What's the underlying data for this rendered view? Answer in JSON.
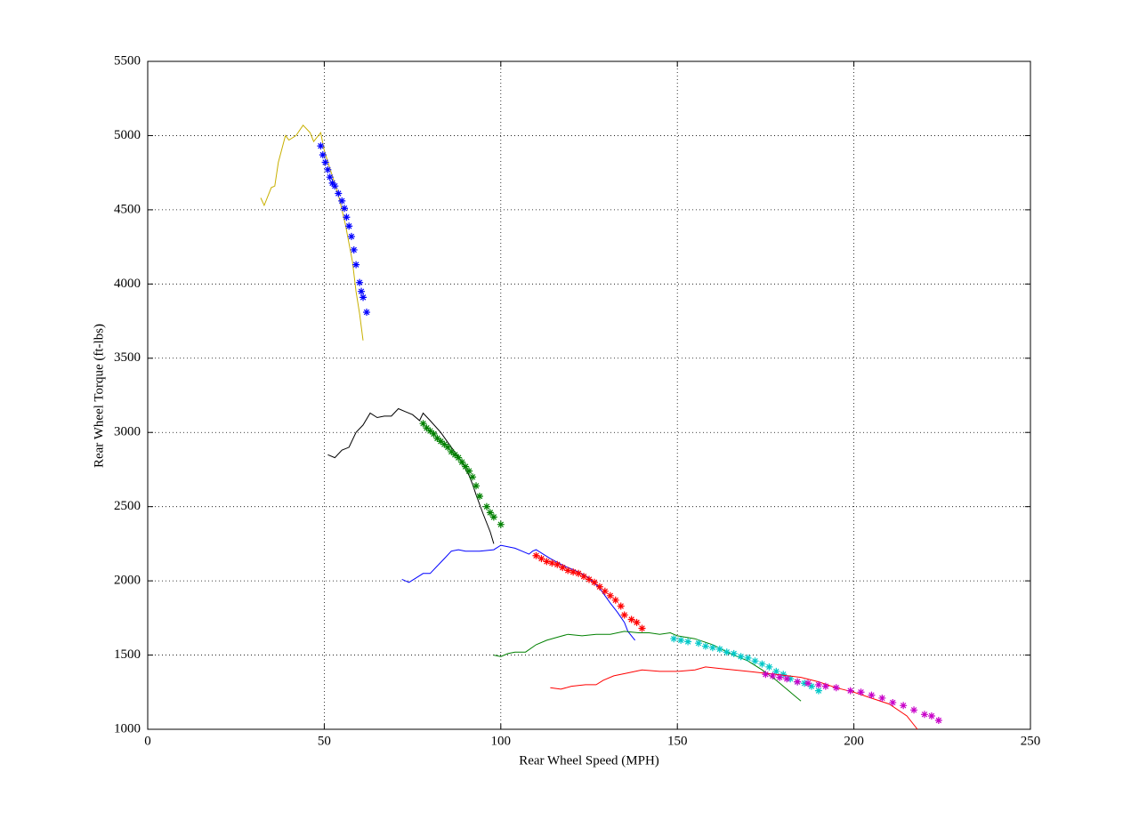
{
  "chart_data": {
    "type": "line",
    "xlabel": "Rear Wheel Speed (MPH)",
    "ylabel": "Rear Wheel Torque (ft-lbs)",
    "xlim": [
      0,
      250
    ],
    "xticks": [
      0,
      50,
      100,
      150,
      200,
      250
    ],
    "ylim": [
      1000,
      5500
    ],
    "yticks": [
      1000,
      1500,
      2000,
      2500,
      3000,
      3500,
      4000,
      4500,
      5000,
      5500
    ],
    "grid": true,
    "series": [
      {
        "color": "#c8b000",
        "style": "line",
        "x": [
          32,
          33,
          35,
          36,
          37,
          39,
          40,
          42,
          44,
          46,
          47,
          49,
          50,
          52,
          54,
          56,
          58,
          59,
          60,
          61
        ],
        "values": [
          4580,
          4530,
          4650,
          4660,
          4820,
          5000,
          4970,
          5000,
          5070,
          5020,
          4960,
          5020,
          4900,
          4750,
          4600,
          4400,
          4150,
          3950,
          3800,
          3620
        ]
      },
      {
        "color": "#0000ff",
        "style": "star",
        "x": [
          49,
          49.6,
          50.3,
          51,
          51.6,
          52.3,
          53,
          54,
          55,
          55.7,
          56.3,
          57,
          57.7,
          58.4,
          59,
          60,
          60.5,
          61,
          62
        ],
        "values": [
          4930,
          4870,
          4820,
          4770,
          4720,
          4680,
          4660,
          4610,
          4560,
          4510,
          4450,
          4390,
          4320,
          4230,
          4130,
          4010,
          3950,
          3910,
          3810
        ]
      },
      {
        "color": "#000000",
        "style": "line",
        "x": [
          51,
          53,
          55,
          57,
          59,
          61,
          63,
          65,
          67,
          69,
          71,
          73,
          75,
          77,
          78,
          80,
          83,
          86,
          89,
          91,
          92,
          93,
          95,
          97,
          98
        ],
        "values": [
          2850,
          2830,
          2880,
          2900,
          3000,
          3050,
          3130,
          3100,
          3110,
          3110,
          3160,
          3140,
          3120,
          3080,
          3130,
          3080,
          3000,
          2900,
          2800,
          2710,
          2650,
          2580,
          2450,
          2330,
          2250
        ]
      },
      {
        "color": "#008000",
        "style": "star",
        "x": [
          78,
          79,
          80,
          81,
          82,
          83,
          84,
          85,
          86,
          87,
          88,
          89,
          90,
          91,
          92,
          93,
          94,
          96,
          97,
          98,
          100
        ],
        "values": [
          3060,
          3030,
          3010,
          2990,
          2960,
          2940,
          2920,
          2900,
          2870,
          2850,
          2830,
          2800,
          2770,
          2740,
          2700,
          2640,
          2570,
          2500,
          2460,
          2430,
          2380
        ]
      },
      {
        "color": "#0000ff",
        "style": "line",
        "x": [
          72,
          74,
          76,
          78,
          80,
          82,
          84,
          86,
          88,
          90,
          94,
          98,
          100,
          104,
          106,
          108,
          109,
          110,
          114,
          118,
          122,
          125,
          128,
          131,
          133,
          135,
          136,
          138
        ],
        "values": [
          2010,
          1990,
          2020,
          2050,
          2050,
          2100,
          2150,
          2200,
          2210,
          2200,
          2200,
          2210,
          2240,
          2220,
          2200,
          2180,
          2200,
          2210,
          2150,
          2100,
          2060,
          2020,
          1950,
          1850,
          1790,
          1720,
          1660,
          1600
        ]
      },
      {
        "color": "#ff0000",
        "style": "star",
        "x": [
          110,
          111.5,
          113,
          114.5,
          116,
          117.5,
          119,
          120.5,
          122,
          123.5,
          125,
          126.5,
          128,
          129.5,
          131,
          132.5,
          134,
          135,
          137,
          138.5,
          140
        ],
        "values": [
          2170,
          2150,
          2130,
          2120,
          2110,
          2090,
          2070,
          2060,
          2050,
          2030,
          2010,
          1990,
          1960,
          1930,
          1900,
          1870,
          1830,
          1770,
          1740,
          1720,
          1680
        ]
      },
      {
        "color": "#008000",
        "style": "line",
        "x": [
          98,
          100,
          102,
          104,
          107,
          110,
          113,
          116,
          119,
          123,
          127,
          131,
          135,
          139,
          142,
          145,
          148,
          150,
          155,
          160,
          165,
          170,
          174,
          178,
          182,
          185
        ],
        "values": [
          1500,
          1490,
          1510,
          1520,
          1520,
          1570,
          1600,
          1620,
          1640,
          1630,
          1640,
          1640,
          1660,
          1650,
          1650,
          1640,
          1650,
          1630,
          1610,
          1570,
          1510,
          1460,
          1400,
          1330,
          1250,
          1190
        ]
      },
      {
        "color": "#00c8c8",
        "style": "star",
        "x": [
          149,
          151,
          153,
          156,
          158,
          160,
          162,
          164,
          166,
          168,
          170,
          172,
          174,
          176,
          178,
          180,
          182,
          184,
          186,
          188,
          190
        ],
        "values": [
          1610,
          1600,
          1590,
          1580,
          1560,
          1550,
          1540,
          1520,
          1510,
          1490,
          1480,
          1460,
          1440,
          1420,
          1390,
          1370,
          1340,
          1320,
          1310,
          1290,
          1260
        ]
      },
      {
        "color": "#ff0000",
        "style": "line",
        "x": [
          114,
          117,
          120,
          124,
          127,
          129,
          132,
          136,
          140,
          145,
          150,
          155,
          158,
          162,
          166,
          170,
          174,
          178,
          185,
          190,
          195,
          200,
          205,
          210,
          215,
          218
        ],
        "values": [
          1280,
          1270,
          1290,
          1300,
          1300,
          1330,
          1360,
          1380,
          1400,
          1390,
          1390,
          1400,
          1420,
          1410,
          1400,
          1390,
          1380,
          1370,
          1350,
          1320,
          1280,
          1250,
          1210,
          1170,
          1090,
          1000
        ]
      },
      {
        "color": "#c800c8",
        "style": "star",
        "x": [
          175,
          177,
          179,
          181,
          184,
          187,
          190,
          192,
          195,
          199,
          202,
          205,
          208,
          211,
          214,
          217,
          220,
          222,
          224
        ],
        "values": [
          1370,
          1360,
          1350,
          1340,
          1320,
          1310,
          1300,
          1290,
          1280,
          1260,
          1250,
          1230,
          1210,
          1180,
          1160,
          1130,
          1100,
          1090,
          1060
        ]
      }
    ]
  }
}
